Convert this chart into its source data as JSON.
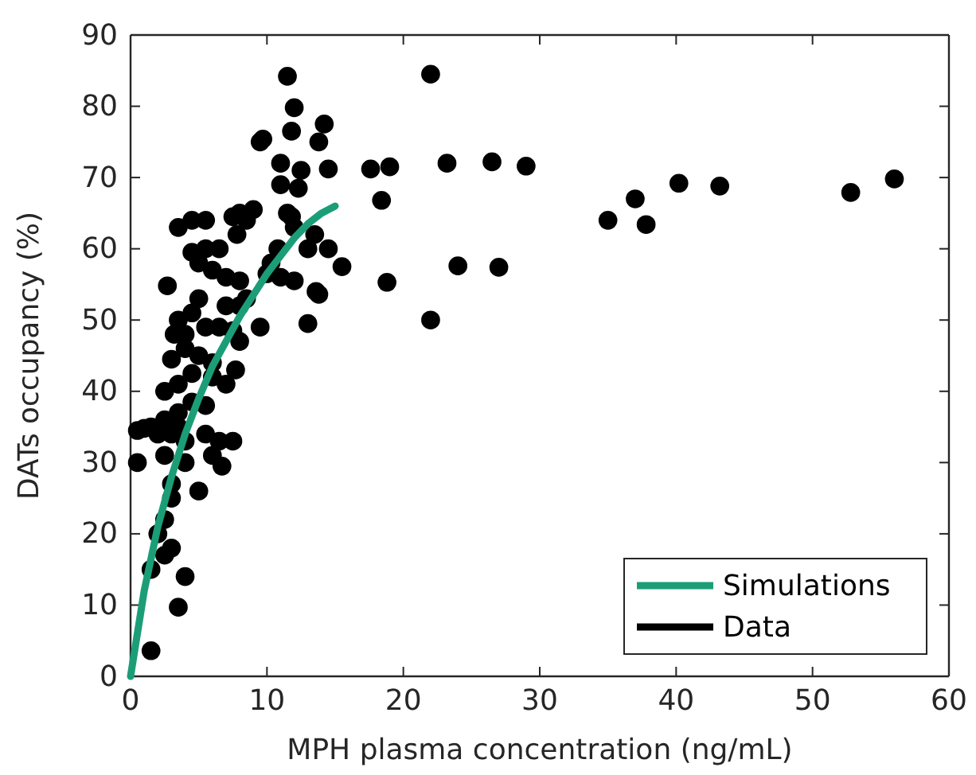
{
  "chart_data": {
    "type": "scatter",
    "xlabel": "MPH plasma concentration (ng/mL)",
    "ylabel": "DATs occupancy (%)",
    "xlim": [
      0,
      60
    ],
    "xticks": [
      0,
      10,
      20,
      30,
      40,
      50,
      60
    ],
    "ylim": [
      0,
      90
    ],
    "yticks": [
      0,
      10,
      20,
      30,
      40,
      50,
      60,
      70,
      80,
      90
    ],
    "grid": false,
    "legend": "bottom right",
    "series": [
      {
        "name": "Simulations",
        "type": "line",
        "color": "#1b9e77",
        "line_style": "solid",
        "x": [
          0,
          0.5,
          1,
          2,
          3,
          4,
          5,
          6,
          7,
          8,
          9,
          10,
          11,
          12,
          13,
          14,
          15
        ],
        "values": [
          0,
          6,
          12,
          21,
          28,
          34,
          39,
          43.5,
          47,
          50.5,
          53.5,
          56.5,
          59,
          61.5,
          63.5,
          65,
          66
        ]
      },
      {
        "name": "Data",
        "marker": "circle",
        "color": "#000000",
        "x": [
          22,
          18.4,
          18.8,
          17.6,
          19,
          22,
          23.2,
          24,
          26.5,
          27,
          29,
          35,
          37,
          37.8,
          40.2,
          43.2,
          52.8,
          56,
          11.5,
          12,
          11.8,
          14.2,
          13.8,
          9.5,
          9.7,
          11,
          12.5,
          14.5,
          11,
          12.3,
          11.5,
          11.8,
          12,
          13.5,
          13,
          10.8,
          14.5,
          10.3,
          10,
          11,
          12,
          13.6,
          13.8,
          15.5,
          13,
          9.5,
          8,
          9,
          8.5,
          7.5,
          7.8,
          6.5,
          5.5,
          4.5,
          3.5,
          2.7,
          4.5,
          5,
          5.5,
          6,
          7,
          8,
          8.5,
          7,
          5,
          4.5,
          3.5,
          3.2,
          5.5,
          6.5,
          7.5,
          8,
          4,
          5,
          6,
          3,
          4.5,
          6,
          7,
          7.7,
          3.5,
          2.5,
          4.5,
          5.5,
          3.5,
          2.5,
          1.5,
          0.5,
          1,
          2,
          3,
          3.5,
          4,
          5.5,
          6.5,
          7.5,
          6,
          2.5,
          0.5,
          4,
          6.7,
          3,
          5,
          3,
          2.5,
          2,
          3,
          2.5,
          1.5,
          4,
          3.5,
          1.5,
          8,
          4
        ],
        "values": [
          84.5,
          66.8,
          55.3,
          71.2,
          71.5,
          50,
          72,
          57.6,
          72.2,
          57.4,
          71.6,
          64,
          67,
          63.4,
          69.2,
          68.8,
          67.9,
          69.8,
          84.2,
          79.8,
          76.5,
          77.5,
          75,
          75,
          75.4,
          72,
          71,
          71.2,
          69,
          68.5,
          65,
          64.5,
          63,
          62,
          60,
          60,
          60,
          58,
          56.5,
          56,
          55.5,
          54,
          53.6,
          57.5,
          49.5,
          49,
          65,
          65.5,
          64,
          64.5,
          62,
          60,
          64,
          64,
          63,
          54.8,
          59.5,
          58,
          60,
          57,
          56,
          55.5,
          53,
          52,
          53,
          51,
          50,
          48,
          49,
          49,
          48.5,
          47,
          46,
          45,
          44,
          44.5,
          42.5,
          42,
          41,
          43,
          41,
          40,
          38.5,
          38,
          37,
          36,
          35,
          34.5,
          34.8,
          34,
          34,
          35,
          33,
          34,
          33,
          33,
          31,
          31,
          30,
          30,
          29.5,
          27,
          26,
          25,
          22,
          20,
          18,
          17,
          15,
          14,
          9.7,
          3.6,
          52,
          48
        ]
      }
    ]
  }
}
